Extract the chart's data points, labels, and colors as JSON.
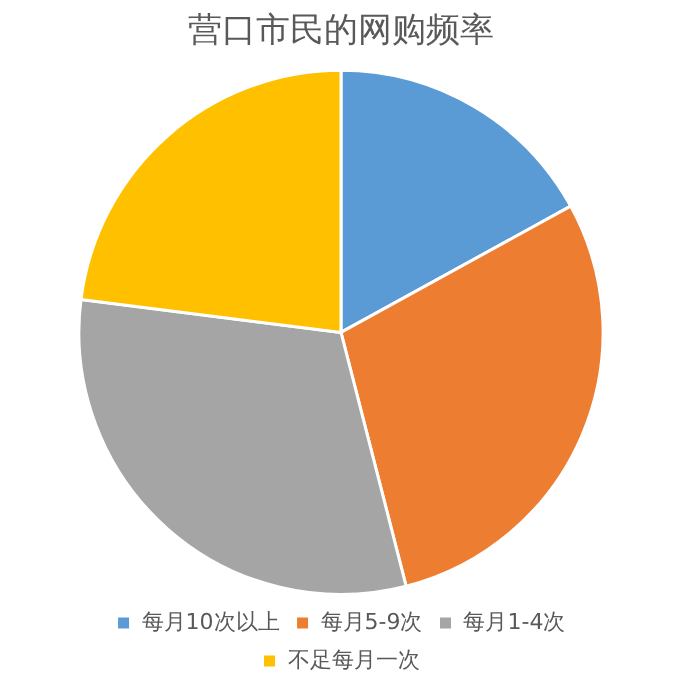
{
  "chart_data": {
    "type": "pie",
    "title": "营口市民的网购频率",
    "categories": [
      "每月10次以上",
      "每月5-9次",
      "每月1-4次",
      "不足每月一次"
    ],
    "values": [
      17,
      29,
      31,
      23
    ],
    "colors": [
      "#5b9bd5",
      "#ed7d31",
      "#a5a5a5",
      "#ffc000"
    ],
    "legend": "bottom"
  }
}
